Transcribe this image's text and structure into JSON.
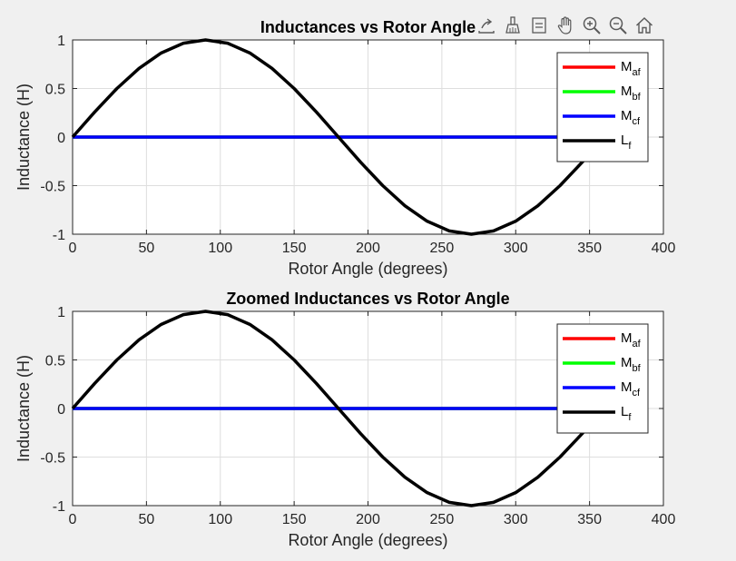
{
  "figure": {
    "background": "#f0f0f0"
  },
  "toolbar": {
    "icons": [
      "export-icon",
      "brush-icon",
      "datatip-icon",
      "pan-hand-icon",
      "zoom-in-icon",
      "zoom-out-icon",
      "home-icon"
    ]
  },
  "chart_data": [
    {
      "type": "line",
      "title": "Inductances vs Rotor Angle",
      "xlabel": "Rotor Angle (degrees)",
      "ylabel": "Inductance (H)",
      "xlim": [
        0,
        400
      ],
      "ylim": [
        -1,
        1
      ],
      "xticks": [
        0,
        50,
        100,
        150,
        200,
        250,
        300,
        350,
        400
      ],
      "yticks": [
        1,
        0.5,
        0,
        -0.5,
        -1
      ],
      "ytick_labels": [
        "1",
        "0.5",
        "0",
        "-0.5",
        "-1"
      ],
      "grid": true,
      "legend_position": "top-right",
      "x": [
        0,
        15,
        30,
        45,
        60,
        75,
        90,
        105,
        120,
        135,
        150,
        165,
        180,
        195,
        210,
        225,
        240,
        255,
        270,
        285,
        300,
        315,
        330,
        345,
        360
      ],
      "series": [
        {
          "name": "M_af",
          "legend_main": "M",
          "legend_sub": "af",
          "color": "#ff0000",
          "values": [
            0,
            0,
            0,
            0,
            0,
            0,
            0,
            0,
            0,
            0,
            0,
            0,
            0,
            0,
            0,
            0,
            0,
            0,
            0,
            0,
            0,
            0,
            0,
            0,
            0
          ]
        },
        {
          "name": "M_bf",
          "legend_main": "M",
          "legend_sub": "bf",
          "color": "#00ff00",
          "values": [
            0,
            0,
            0,
            0,
            0,
            0,
            0,
            0,
            0,
            0,
            0,
            0,
            0,
            0,
            0,
            0,
            0,
            0,
            0,
            0,
            0,
            0,
            0,
            0,
            0
          ]
        },
        {
          "name": "M_cf",
          "legend_main": "M",
          "legend_sub": "cf",
          "color": "#0000ff",
          "values": [
            0,
            0,
            0,
            0,
            0,
            0,
            0,
            0,
            0,
            0,
            0,
            0,
            0,
            0,
            0,
            0,
            0,
            0,
            0,
            0,
            0,
            0,
            0,
            0,
            0
          ]
        },
        {
          "name": "L_f",
          "legend_main": "L",
          "legend_sub": "f",
          "color": "#000000",
          "values": [
            0,
            0.259,
            0.5,
            0.707,
            0.866,
            0.966,
            1,
            0.966,
            0.866,
            0.707,
            0.5,
            0.259,
            0,
            -0.259,
            -0.5,
            -0.707,
            -0.866,
            -0.966,
            -1,
            -0.966,
            -0.866,
            -0.707,
            -0.5,
            -0.259,
            0
          ]
        }
      ]
    },
    {
      "type": "line",
      "title": "Zoomed Inductances vs Rotor Angle",
      "xlabel": "Rotor Angle (degrees)",
      "ylabel": "Inductance (H)",
      "xlim": [
        0,
        400
      ],
      "ylim": [
        -1,
        1
      ],
      "xticks": [
        0,
        50,
        100,
        150,
        200,
        250,
        300,
        350,
        400
      ],
      "yticks": [
        1,
        0.5,
        0,
        -0.5,
        -1
      ],
      "ytick_labels": [
        "1",
        "0.5",
        "0",
        "-0.5",
        "-1"
      ],
      "grid": true,
      "legend_position": "top-right",
      "x": [
        0,
        15,
        30,
        45,
        60,
        75,
        90,
        105,
        120,
        135,
        150,
        165,
        180,
        195,
        210,
        225,
        240,
        255,
        270,
        285,
        300,
        315,
        330,
        345,
        360
      ],
      "series": [
        {
          "name": "M_af",
          "legend_main": "M",
          "legend_sub": "af",
          "color": "#ff0000",
          "values": [
            0,
            0,
            0,
            0,
            0,
            0,
            0,
            0,
            0,
            0,
            0,
            0,
            0,
            0,
            0,
            0,
            0,
            0,
            0,
            0,
            0,
            0,
            0,
            0,
            0
          ]
        },
        {
          "name": "M_bf",
          "legend_main": "M",
          "legend_sub": "bf",
          "color": "#00ff00",
          "values": [
            0,
            0,
            0,
            0,
            0,
            0,
            0,
            0,
            0,
            0,
            0,
            0,
            0,
            0,
            0,
            0,
            0,
            0,
            0,
            0,
            0,
            0,
            0,
            0,
            0
          ]
        },
        {
          "name": "M_cf",
          "legend_main": "M",
          "legend_sub": "cf",
          "color": "#0000ff",
          "values": [
            0,
            0,
            0,
            0,
            0,
            0,
            0,
            0,
            0,
            0,
            0,
            0,
            0,
            0,
            0,
            0,
            0,
            0,
            0,
            0,
            0,
            0,
            0,
            0,
            0
          ]
        },
        {
          "name": "L_f",
          "legend_main": "L",
          "legend_sub": "f",
          "color": "#000000",
          "values": [
            0,
            0.259,
            0.5,
            0.707,
            0.866,
            0.966,
            1,
            0.966,
            0.866,
            0.707,
            0.5,
            0.259,
            0,
            -0.259,
            -0.5,
            -0.707,
            -0.866,
            -0.966,
            -1,
            -0.966,
            -0.866,
            -0.707,
            -0.5,
            -0.259,
            0
          ]
        }
      ]
    }
  ]
}
